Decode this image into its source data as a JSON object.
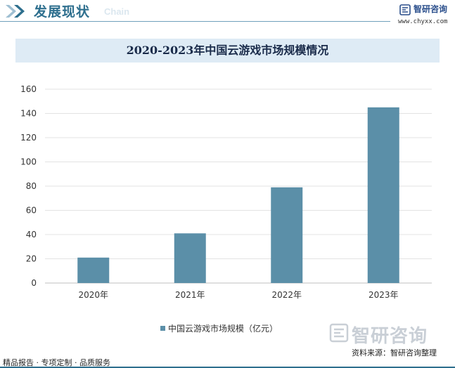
{
  "header": {
    "section_title": "发展现状",
    "section_subtitle": "Chain",
    "brand_name": "智研咨询",
    "brand_url": "www.chyxx.com"
  },
  "banner": {
    "title": "2020-2023年中国云游戏市场规模情况"
  },
  "chart_data": {
    "type": "bar",
    "categories": [
      "2020年",
      "2021年",
      "2022年",
      "2023年"
    ],
    "series": [
      {
        "name": "中国云游戏市场规模（亿元）",
        "values": [
          21,
          41,
          79,
          145
        ],
        "color": "#5b8fa8"
      }
    ],
    "ylim": [
      0,
      160
    ],
    "yticks": [
      0,
      20,
      40,
      60,
      80,
      100,
      120,
      140,
      160
    ],
    "grid": true,
    "legend": "bottom-center"
  },
  "footer": {
    "left_text": "精品报告 · 专项定制 · 品质服务",
    "source": "资料来源：智研咨询整理",
    "watermark_name": "智研咨询"
  },
  "colors": {
    "accent": "#2e6f8e",
    "bar": "#5b8fa8",
    "banner_bg": "#deebf5"
  }
}
